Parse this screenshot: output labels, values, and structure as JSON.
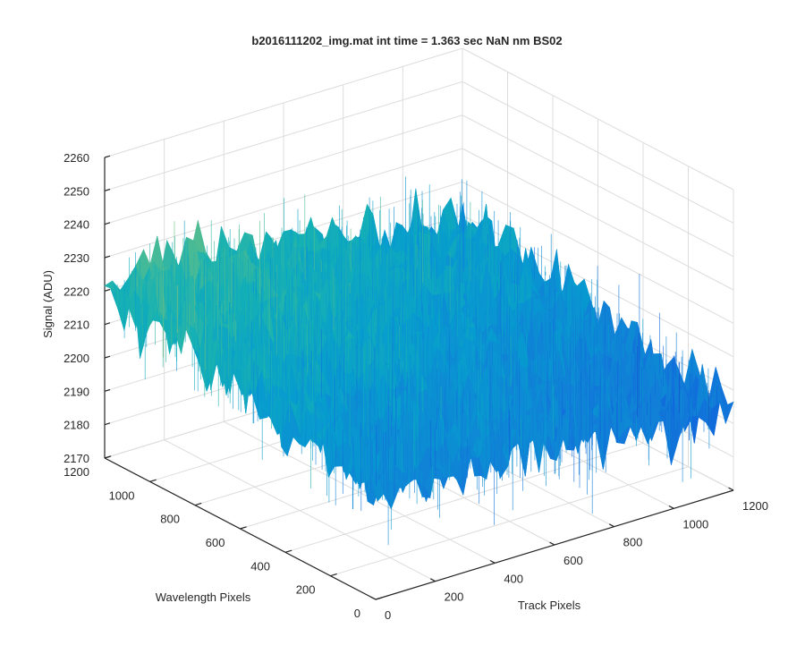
{
  "chart_data": {
    "type": "surface",
    "title": "b2016111202_img.mat int time = 1.363 sec  NaN nm BS02",
    "xlabel": "Track Pixels",
    "ylabel": "Wavelength Pixels",
    "zlabel": "Signal (ADU)",
    "xlim": [
      0,
      1200
    ],
    "ylim": [
      0,
      1200
    ],
    "zlim": [
      2170,
      2260
    ],
    "x_ticks": [
      "0",
      "200",
      "400",
      "600",
      "800",
      "1000",
      "1200"
    ],
    "y_ticks": [
      "0",
      "200",
      "400",
      "600",
      "800",
      "1000",
      "1200"
    ],
    "z_ticks": [
      "2170",
      "2180",
      "2190",
      "2200",
      "2210",
      "2220",
      "2230",
      "2240",
      "2250",
      "2260"
    ],
    "grid": true,
    "colormap": "parula",
    "surface_description": "noisy detector image; mean signal about 2200-2220 ADU, higher (about 2220 ADU) toward large wavelength pixels and low track pixels, lower (about 2195 ADU) toward large track pixels",
    "surface_samples": {
      "x": [
        0,
        200,
        400,
        600,
        800,
        1000,
        1200
      ],
      "y": [
        0,
        200,
        400,
        600,
        800,
        1000,
        1200
      ],
      "z_mean": [
        [
          2203,
          2205,
          2208,
          2212,
          2216,
          2219,
          2221
        ],
        [
          2202,
          2204,
          2207,
          2211,
          2215,
          2218,
          2220
        ],
        [
          2201,
          2203,
          2206,
          2210,
          2214,
          2217,
          2219
        ],
        [
          2200,
          2202,
          2205,
          2208,
          2212,
          2215,
          2217
        ],
        [
          2198,
          2200,
          2203,
          2206,
          2209,
          2212,
          2214
        ],
        [
          2196,
          2198,
          2201,
          2204,
          2207,
          2209,
          2211
        ],
        [
          2195,
          2197,
          2199,
          2202,
          2205,
          2207,
          2209
        ]
      ],
      "noise_amplitude": 14
    }
  }
}
